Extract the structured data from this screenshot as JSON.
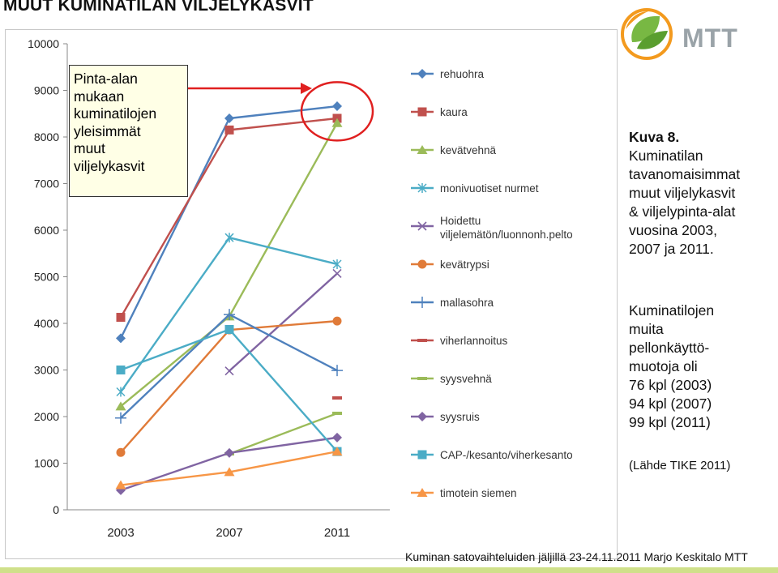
{
  "slide_title": "MUUT KUMINATILAN VILJELYKASVIT",
  "callout": {
    "lines": [
      "Pinta-alan",
      "mukaan",
      "kuminatilojen",
      "yleisimmät",
      "muut",
      "viljelykasvit"
    ]
  },
  "logo": {
    "text": "MTT",
    "colors": {
      "orange": "#f39a1e",
      "green": "#78b843",
      "grey": "#9aa3a8"
    }
  },
  "caption": {
    "title": "Kuva 8.",
    "lines": [
      "Kuminatilan",
      "tavanomaisimmat",
      "muut viljelykasvit",
      "& viljelypinta-alat",
      "vuosina 2003,",
      "2007 ja 2011."
    ]
  },
  "caption2": {
    "lines": [
      "Kuminatilojen",
      "muita",
      "pellonkäyttö-",
      "muotoja oli",
      "76 kpl (2003)",
      "94 kpl (2007)",
      "99 kpl (2011)"
    ]
  },
  "source": "(Lähde TIKE 2011)",
  "footer": "Kuminan satovaihteluiden jäljillä 23-24.11.2011 Marjo Keskitalo MTT",
  "chart_data": {
    "type": "line",
    "title": "",
    "xlabel": "",
    "ylabel": "",
    "categories": [
      "2003",
      "2007",
      "2011"
    ],
    "ylim": [
      0,
      10000
    ],
    "yticks": [
      0,
      1000,
      2000,
      3000,
      4000,
      5000,
      6000,
      7000,
      8000,
      9000,
      10000
    ],
    "legend_position": "right",
    "grid": false,
    "highlight": "red ellipse around 2011 values of rehuohra and kaura, pointed to by red arrow from callout",
    "series": [
      {
        "name": "rehuohra",
        "color": "#4f81bd",
        "marker": "diamond",
        "values": [
          3680,
          8400,
          8660
        ]
      },
      {
        "name": "kaura",
        "color": "#c0504d",
        "marker": "square",
        "values": [
          4130,
          8150,
          8400
        ]
      },
      {
        "name": "kevätvehnä",
        "color": "#9bbb59",
        "marker": "triangle",
        "values": [
          2220,
          4150,
          8300
        ]
      },
      {
        "name": "monivuotiset nurmet",
        "color": "#4bacc6",
        "marker": "star",
        "values": [
          2530,
          5840,
          5270
        ]
      },
      {
        "name": "Hoidettu viljelemätön/luonnonh.pelto",
        "color": "#8064a2",
        "marker": "x",
        "values": [
          null,
          2980,
          5070
        ]
      },
      {
        "name": "kevätrypsi",
        "color": "#e07b39",
        "marker": "circle",
        "values": [
          1230,
          3860,
          4050
        ]
      },
      {
        "name": "mallasohra",
        "color": "#4f81bd",
        "marker": "plus",
        "values": [
          1970,
          4190,
          2990
        ]
      },
      {
        "name": "viherlannoitus",
        "color": "#c0504d",
        "marker": "dash",
        "values": [
          null,
          null,
          2400
        ]
      },
      {
        "name": "syysvehnä",
        "color": "#9bbb59",
        "marker": "dash",
        "values": [
          null,
          1200,
          2070
        ]
      },
      {
        "name": "syysruis",
        "color": "#8064a2",
        "marker": "diamond",
        "values": [
          420,
          1220,
          1550
        ]
      },
      {
        "name": "CAP-/kesanto/viherkesanto",
        "color": "#4bacc6",
        "marker": "square",
        "values": [
          3000,
          3870,
          1250
        ]
      },
      {
        "name": "timotein siemen",
        "color": "#f79646",
        "marker": "triangle",
        "values": [
          530,
          810,
          1250
        ]
      }
    ]
  }
}
